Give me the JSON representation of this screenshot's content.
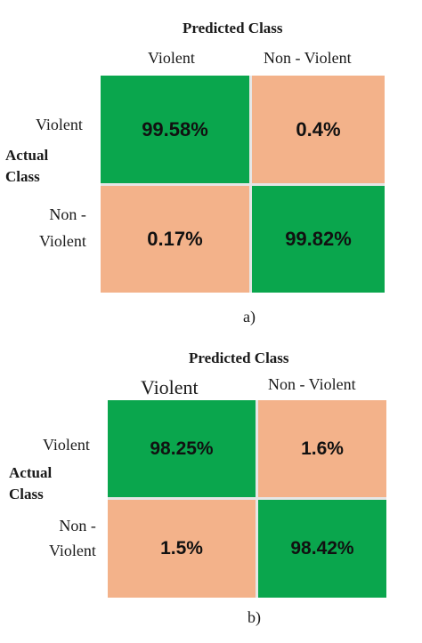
{
  "chart_data": [
    {
      "type": "heatmap",
      "panel": "a)",
      "title": "Predicted Class",
      "predicted_labels": [
        "Violent",
        "Non - Violent"
      ],
      "actual_label": [
        "Actual",
        "Class"
      ],
      "actual_labels": [
        [
          "Violent"
        ],
        [
          "Non -",
          "Violent"
        ]
      ],
      "cells": [
        [
          "99.58%",
          "0.4%"
        ],
        [
          "0.17%",
          "99.82%"
        ]
      ],
      "values": [
        [
          99.58,
          0.4
        ],
        [
          0.17,
          99.82
        ]
      ],
      "colors": {
        "correct": "#0aa64d",
        "error": "#f3b28a"
      }
    },
    {
      "type": "heatmap",
      "panel": "b)",
      "title": "Predicted Class",
      "predicted_labels": [
        "Violent",
        "Non - Violent"
      ],
      "actual_label": [
        "Actual",
        "Class"
      ],
      "actual_labels": [
        [
          "Violent"
        ],
        [
          "Non -",
          "Violent"
        ]
      ],
      "cells": [
        [
          "98.25%",
          "1.6%"
        ],
        [
          "1.5%",
          "98.42%"
        ]
      ],
      "values": [
        [
          98.25,
          1.6
        ],
        [
          1.5,
          98.42
        ]
      ],
      "colors": {
        "correct": "#0aa64d",
        "error": "#f3b28a"
      }
    }
  ]
}
